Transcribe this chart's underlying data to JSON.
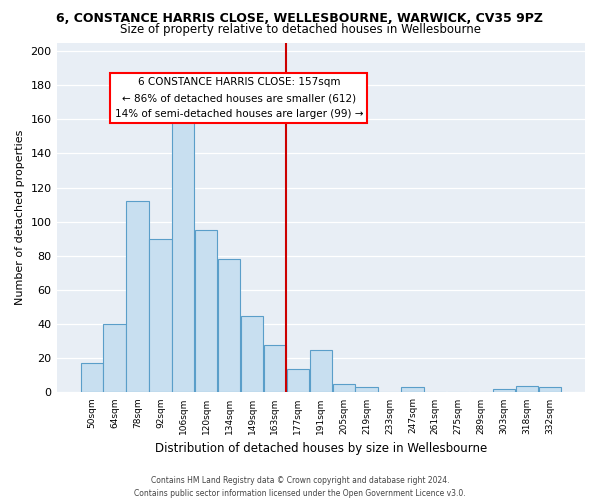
{
  "title": "6, CONSTANCE HARRIS CLOSE, WELLESBOURNE, WARWICK, CV35 9PZ",
  "subtitle": "Size of property relative to detached houses in Wellesbourne",
  "xlabel": "Distribution of detached houses by size in Wellesbourne",
  "ylabel": "Number of detached properties",
  "bar_labels": [
    "50sqm",
    "64sqm",
    "78sqm",
    "92sqm",
    "106sqm",
    "120sqm",
    "134sqm",
    "149sqm",
    "163sqm",
    "177sqm",
    "191sqm",
    "205sqm",
    "219sqm",
    "233sqm",
    "247sqm",
    "261sqm",
    "275sqm",
    "289sqm",
    "303sqm",
    "318sqm",
    "332sqm"
  ],
  "bar_values": [
    17,
    40,
    112,
    90,
    165,
    95,
    78,
    45,
    28,
    14,
    25,
    5,
    3,
    0,
    3,
    0,
    0,
    0,
    2,
    4,
    3
  ],
  "bar_color": "#c8dff0",
  "bar_edge_color": "#5a9ec9",
  "vline_color": "#cc0000",
  "ylim": [
    0,
    205
  ],
  "yticks": [
    0,
    20,
    40,
    60,
    80,
    100,
    120,
    140,
    160,
    180,
    200
  ],
  "annotation_title": "6 CONSTANCE HARRIS CLOSE: 157sqm",
  "annotation_line1": "← 86% of detached houses are smaller (612)",
  "annotation_line2": "14% of semi-detached houses are larger (99) →",
  "footer1": "Contains HM Land Registry data © Crown copyright and database right 2024.",
  "footer2": "Contains public sector information licensed under the Open Government Licence v3.0.",
  "bg_color": "#e8eef5",
  "grid_color": "#ffffff",
  "title_fontsize": 9,
  "subtitle_fontsize": 8.5
}
